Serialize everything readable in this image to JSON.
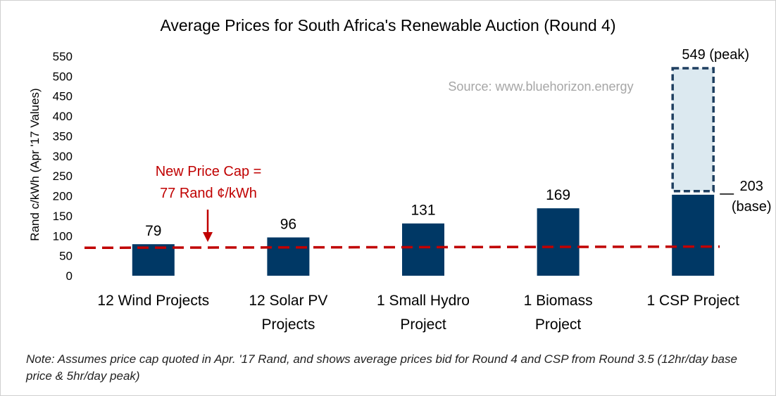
{
  "chart_data": {
    "type": "bar",
    "title": "Average Prices for South Africa's Renewable Auction (Round 4)",
    "ylabel": "Rand c/kWh (Apr '17 Values)",
    "xlabel": "",
    "ylim": [
      0,
      550
    ],
    "yticks": [
      0,
      50,
      100,
      150,
      200,
      250,
      300,
      350,
      400,
      450,
      500,
      550
    ],
    "grid": false,
    "categories": [
      [
        "12 Wind Projects"
      ],
      [
        "12 Solar PV",
        "Projects"
      ],
      [
        "1 Small Hydro",
        "Project"
      ],
      [
        "1 Biomass",
        "Project"
      ],
      [
        "1 CSP Project"
      ]
    ],
    "values": [
      79,
      96,
      131,
      169,
      203
    ],
    "data_labels": [
      "79",
      "96",
      "131",
      "169",
      ""
    ],
    "csp_peak": {
      "value": 549,
      "label": "549 (peak)",
      "box_range": [
        212,
        520
      ]
    },
    "csp_base_label": [
      "203",
      "(base)"
    ],
    "price_cap": {
      "value": 77,
      "line_y_range": [
        70,
        73
      ],
      "label": [
        "New Price Cap =",
        "77 Rand ¢/kWh"
      ]
    },
    "source": "Source: www.bluehorizon.energy",
    "note": "Note: Assumes price cap quoted in Apr. '17 Rand, and shows average prices bid for Round 4 and CSP from Round 3.5 (12hr/day base price & 5hr/day peak)",
    "colors": {
      "bar": "#003865",
      "peak_fill": "#dce9f0",
      "peak_border": "#1f3f60",
      "cap_line": "#c00000",
      "cap_text": "#c00000",
      "source_text": "#a6a6a6",
      "text": "#000000"
    }
  }
}
